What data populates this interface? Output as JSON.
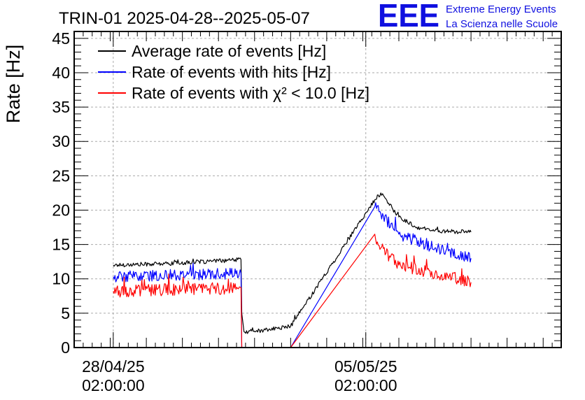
{
  "chart_data": {
    "type": "line",
    "title": "TRIN-01 2025-04-28--2025-05-07",
    "xlabel": "",
    "ylabel": "Rate [Hz]",
    "ylim": [
      0,
      46
    ],
    "yticks": [
      0,
      5,
      10,
      15,
      20,
      25,
      30,
      35,
      40,
      45
    ],
    "xlim": [
      "2025-04-27T00:00:00",
      "2025-05-10T12:00:00"
    ],
    "xticks": [
      {
        "x": "2025-04-28T02:00:00",
        "date": "28/04/25",
        "time": "02:00:00"
      },
      {
        "x": "2025-05-05T02:00:00",
        "date": "05/05/25",
        "time": "02:00:00"
      }
    ],
    "grid": true,
    "legend_position": "top-left",
    "series": [
      {
        "name": "Average rate of events [Hz]",
        "color": "#000000",
        "noise": 0.3,
        "points": [
          {
            "x": "2025-04-28T02:00:00",
            "y": 12.0
          },
          {
            "x": "2025-04-29T12:00:00",
            "y": 12.2
          },
          {
            "x": "2025-05-01T00:00:00",
            "y": 12.6
          },
          {
            "x": "2025-05-01T15:00:00",
            "y": 12.8
          },
          {
            "x": "2025-05-01T15:30:00",
            "y": 5.0
          },
          {
            "x": "2025-05-01T17:00:00",
            "y": 2.3
          },
          {
            "x": "2025-05-02T06:00:00",
            "y": 2.5
          },
          {
            "x": "2025-05-03T00:00:00",
            "y": 3.1
          },
          {
            "x": "2025-05-05T08:00:00",
            "y": 21.5
          },
          {
            "x": "2025-05-05T12:00:00",
            "y": 22.5
          },
          {
            "x": "2025-05-06T00:00:00",
            "y": 19.0
          },
          {
            "x": "2025-05-06T12:00:00",
            "y": 17.5
          },
          {
            "x": "2025-05-07T00:00:00",
            "y": 17.0
          },
          {
            "x": "2025-05-08T00:00:00",
            "y": 16.8
          }
        ]
      },
      {
        "name": "Rate of events with hits [Hz]",
        "color": "#0000ff",
        "noise": 0.8,
        "points": [
          {
            "x": "2025-04-28T02:00:00",
            "y": 10.3
          },
          {
            "x": "2025-05-01T15:00:00",
            "y": 10.8
          },
          {
            "x": "2025-05-01T15:30:00",
            "y": 0
          },
          {
            "x": "2025-05-03T00:00:00",
            "y": 0
          },
          {
            "x": "2025-05-05T08:00:00",
            "y": 20.5
          },
          {
            "x": "2025-05-05T12:00:00",
            "y": 19.5
          },
          {
            "x": "2025-05-06T00:00:00",
            "y": 16.5
          },
          {
            "x": "2025-05-07T00:00:00",
            "y": 14.5
          },
          {
            "x": "2025-05-08T00:00:00",
            "y": 13.0
          }
        ]
      },
      {
        "name": "Rate of events with χ² < 10.0 [Hz]",
        "color": "#ff0000",
        "noise": 0.9,
        "points": [
          {
            "x": "2025-04-28T02:00:00",
            "y": 8.2
          },
          {
            "x": "2025-05-01T15:00:00",
            "y": 8.7
          },
          {
            "x": "2025-05-01T15:30:00",
            "y": 0
          },
          {
            "x": "2025-05-03T00:00:00",
            "y": 0
          },
          {
            "x": "2025-05-05T08:00:00",
            "y": 16.5
          },
          {
            "x": "2025-05-05T12:00:00",
            "y": 14.5
          },
          {
            "x": "2025-05-06T00:00:00",
            "y": 12.0
          },
          {
            "x": "2025-05-07T00:00:00",
            "y": 10.8
          },
          {
            "x": "2025-05-08T00:00:00",
            "y": 9.5
          }
        ]
      }
    ]
  },
  "logo": {
    "mark": "EEE",
    "line1": "Extreme Energy Events",
    "line2": "La Scienza nelle Scuole",
    "color": "#1010e0"
  }
}
